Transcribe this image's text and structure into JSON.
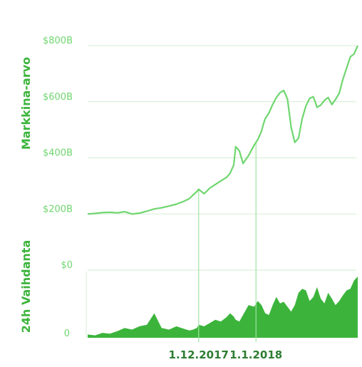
{
  "colors": {
    "line": "#6fd66f",
    "area": "#3cb43c",
    "grid": "#d3eed3",
    "axis_title": "#3cb43c",
    "tick": "#6fd66f",
    "date": "#2e7d32",
    "marker": "#9fe39f"
  },
  "chart_data": [
    {
      "type": "line",
      "ylabel": "Markkina-arvo",
      "ylim": [
        0,
        800
      ],
      "yticks": [
        0,
        200,
        400,
        600,
        800
      ],
      "ytick_labels": [
        "$0",
        "$200B",
        "$400B",
        "$600B",
        "$800B"
      ],
      "grid": true,
      "x": [
        "2017-10-02",
        "2017-10-06",
        "2017-10-10",
        "2017-10-14",
        "2017-10-18",
        "2017-10-22",
        "2017-10-26",
        "2017-10-30",
        "2017-11-03",
        "2017-11-07",
        "2017-11-11",
        "2017-11-15",
        "2017-11-19",
        "2017-11-23",
        "2017-11-26",
        "2017-11-28",
        "2017-11-30",
        "2017-12-01",
        "2017-12-04",
        "2017-12-07",
        "2017-12-10",
        "2017-12-13",
        "2017-12-16",
        "2017-12-18",
        "2017-12-20",
        "2017-12-21",
        "2017-12-23",
        "2017-12-25",
        "2017-12-28",
        "2017-12-31",
        "2018-01-02",
        "2018-01-04",
        "2018-01-05",
        "2018-01-06",
        "2018-01-08",
        "2018-01-10",
        "2018-01-12",
        "2018-01-14",
        "2018-01-16",
        "2018-01-18",
        "2018-01-20",
        "2018-01-22",
        "2018-01-24",
        "2018-01-26",
        "2018-01-28",
        "2018-01-30",
        "2018-02-01",
        "2018-02-03",
        "2018-02-05",
        "2018-02-07",
        "2018-02-09",
        "2018-02-11",
        "2018-02-13",
        "2018-02-15",
        "2018-02-17",
        "2018-02-19",
        "2018-02-21",
        "2018-02-23",
        "2018-02-25"
      ],
      "series": [
        {
          "values": [
            200,
            202,
            205,
            206,
            204,
            208,
            200,
            203,
            210,
            218,
            222,
            228,
            235,
            245,
            255,
            268,
            280,
            288,
            272,
            292,
            305,
            318,
            330,
            345,
            375,
            440,
            425,
            380,
            408,
            445,
            465,
            495,
            520,
            540,
            560,
            590,
            615,
            632,
            640,
            610,
            510,
            455,
            470,
            540,
            585,
            612,
            618,
            580,
            588,
            605,
            615,
            590,
            608,
            630,
            680,
            720,
            760,
            770,
            800
          ]
        }
      ]
    },
    {
      "type": "area",
      "ylabel": "24h Vaihdanta",
      "yticks": [
        0
      ],
      "ytick_labels": [
        "0"
      ],
      "x": [
        "2017-10-02",
        "2017-10-06",
        "2017-10-10",
        "2017-10-14",
        "2017-10-18",
        "2017-10-22",
        "2017-10-26",
        "2017-10-30",
        "2017-11-03",
        "2017-11-07",
        "2017-11-11",
        "2017-11-15",
        "2017-11-19",
        "2017-11-23",
        "2017-11-26",
        "2017-11-28",
        "2017-11-30",
        "2017-12-01",
        "2017-12-04",
        "2017-12-07",
        "2017-12-10",
        "2017-12-13",
        "2017-12-16",
        "2017-12-18",
        "2017-12-20",
        "2017-12-21",
        "2017-12-23",
        "2017-12-25",
        "2017-12-28",
        "2017-12-31",
        "2018-01-02",
        "2018-01-04",
        "2018-01-05",
        "2018-01-06",
        "2018-01-08",
        "2018-01-10",
        "2018-01-12",
        "2018-01-14",
        "2018-01-16",
        "2018-01-18",
        "2018-01-20",
        "2018-01-22",
        "2018-01-24",
        "2018-01-26",
        "2018-01-28",
        "2018-01-30",
        "2018-02-01",
        "2018-02-03",
        "2018-02-05",
        "2018-02-07",
        "2018-02-09",
        "2018-02-11",
        "2018-02-13",
        "2018-02-15",
        "2018-02-17",
        "2018-02-19",
        "2018-02-21",
        "2018-02-23",
        "2018-02-25"
      ],
      "x_tick_labels": [
        {
          "date": "2017-12-01",
          "label": "1.12.2017"
        },
        {
          "date": "2018-01-01",
          "label": "1.1.2018"
        }
      ],
      "series": [
        {
          "values": [
            4,
            3,
            6,
            5,
            8,
            12,
            10,
            14,
            16,
            30,
            12,
            10,
            14,
            11,
            9,
            10,
            12,
            16,
            14,
            18,
            22,
            20,
            25,
            30,
            26,
            22,
            20,
            28,
            40,
            38,
            45,
            40,
            35,
            30,
            28,
            40,
            50,
            42,
            44,
            38,
            32,
            40,
            55,
            60,
            58,
            45,
            50,
            62,
            48,
            42,
            55,
            48,
            40,
            45,
            52,
            58,
            60,
            70,
            75
          ]
        }
      ]
    }
  ]
}
